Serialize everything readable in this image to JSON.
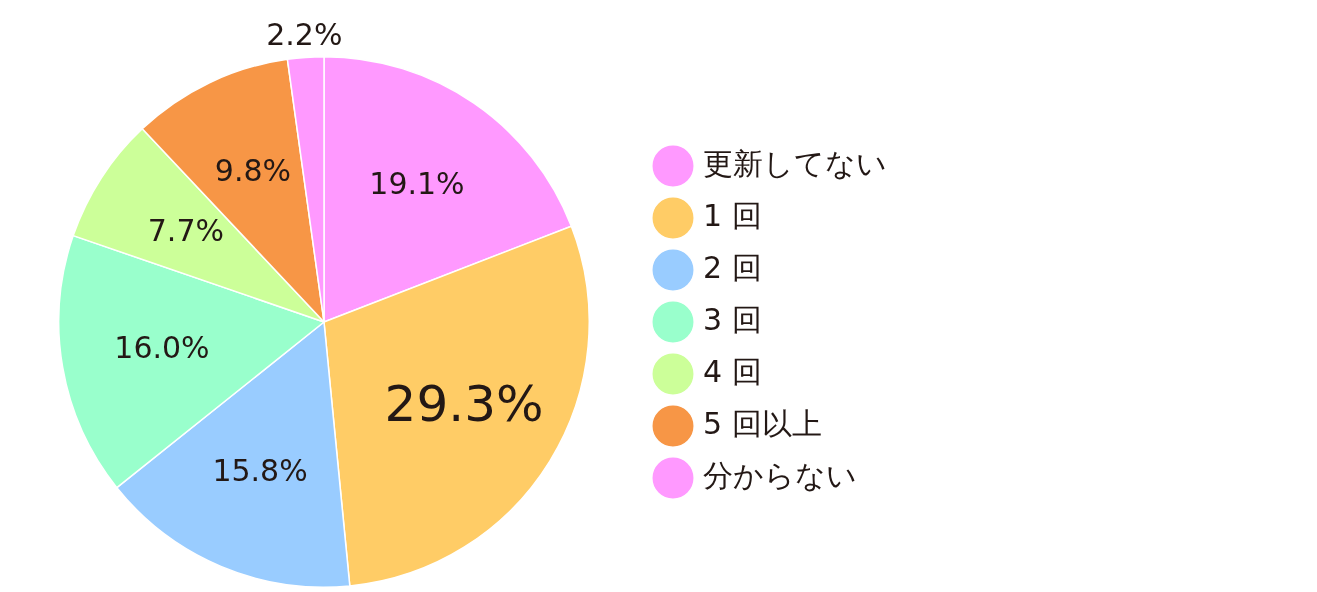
{
  "chart_data": {
    "type": "pie",
    "categories": [
      "更新してない",
      "1 回",
      "2 回",
      "3 回",
      "4 回",
      "5 回以上",
      "分からない"
    ],
    "values": [
      19.1,
      29.3,
      15.8,
      16.0,
      7.7,
      9.8,
      2.2
    ],
    "colors": [
      "#ff99ff",
      "#ffcc66",
      "#99ccff",
      "#99ffcc",
      "#ccff99",
      "#f79646",
      "#ff99ff"
    ],
    "value_labels": [
      "19.1%",
      "29.3%",
      "15.8%",
      "16.0%",
      "7.7%",
      "9.8%",
      "2.2%"
    ],
    "legend": "right"
  }
}
